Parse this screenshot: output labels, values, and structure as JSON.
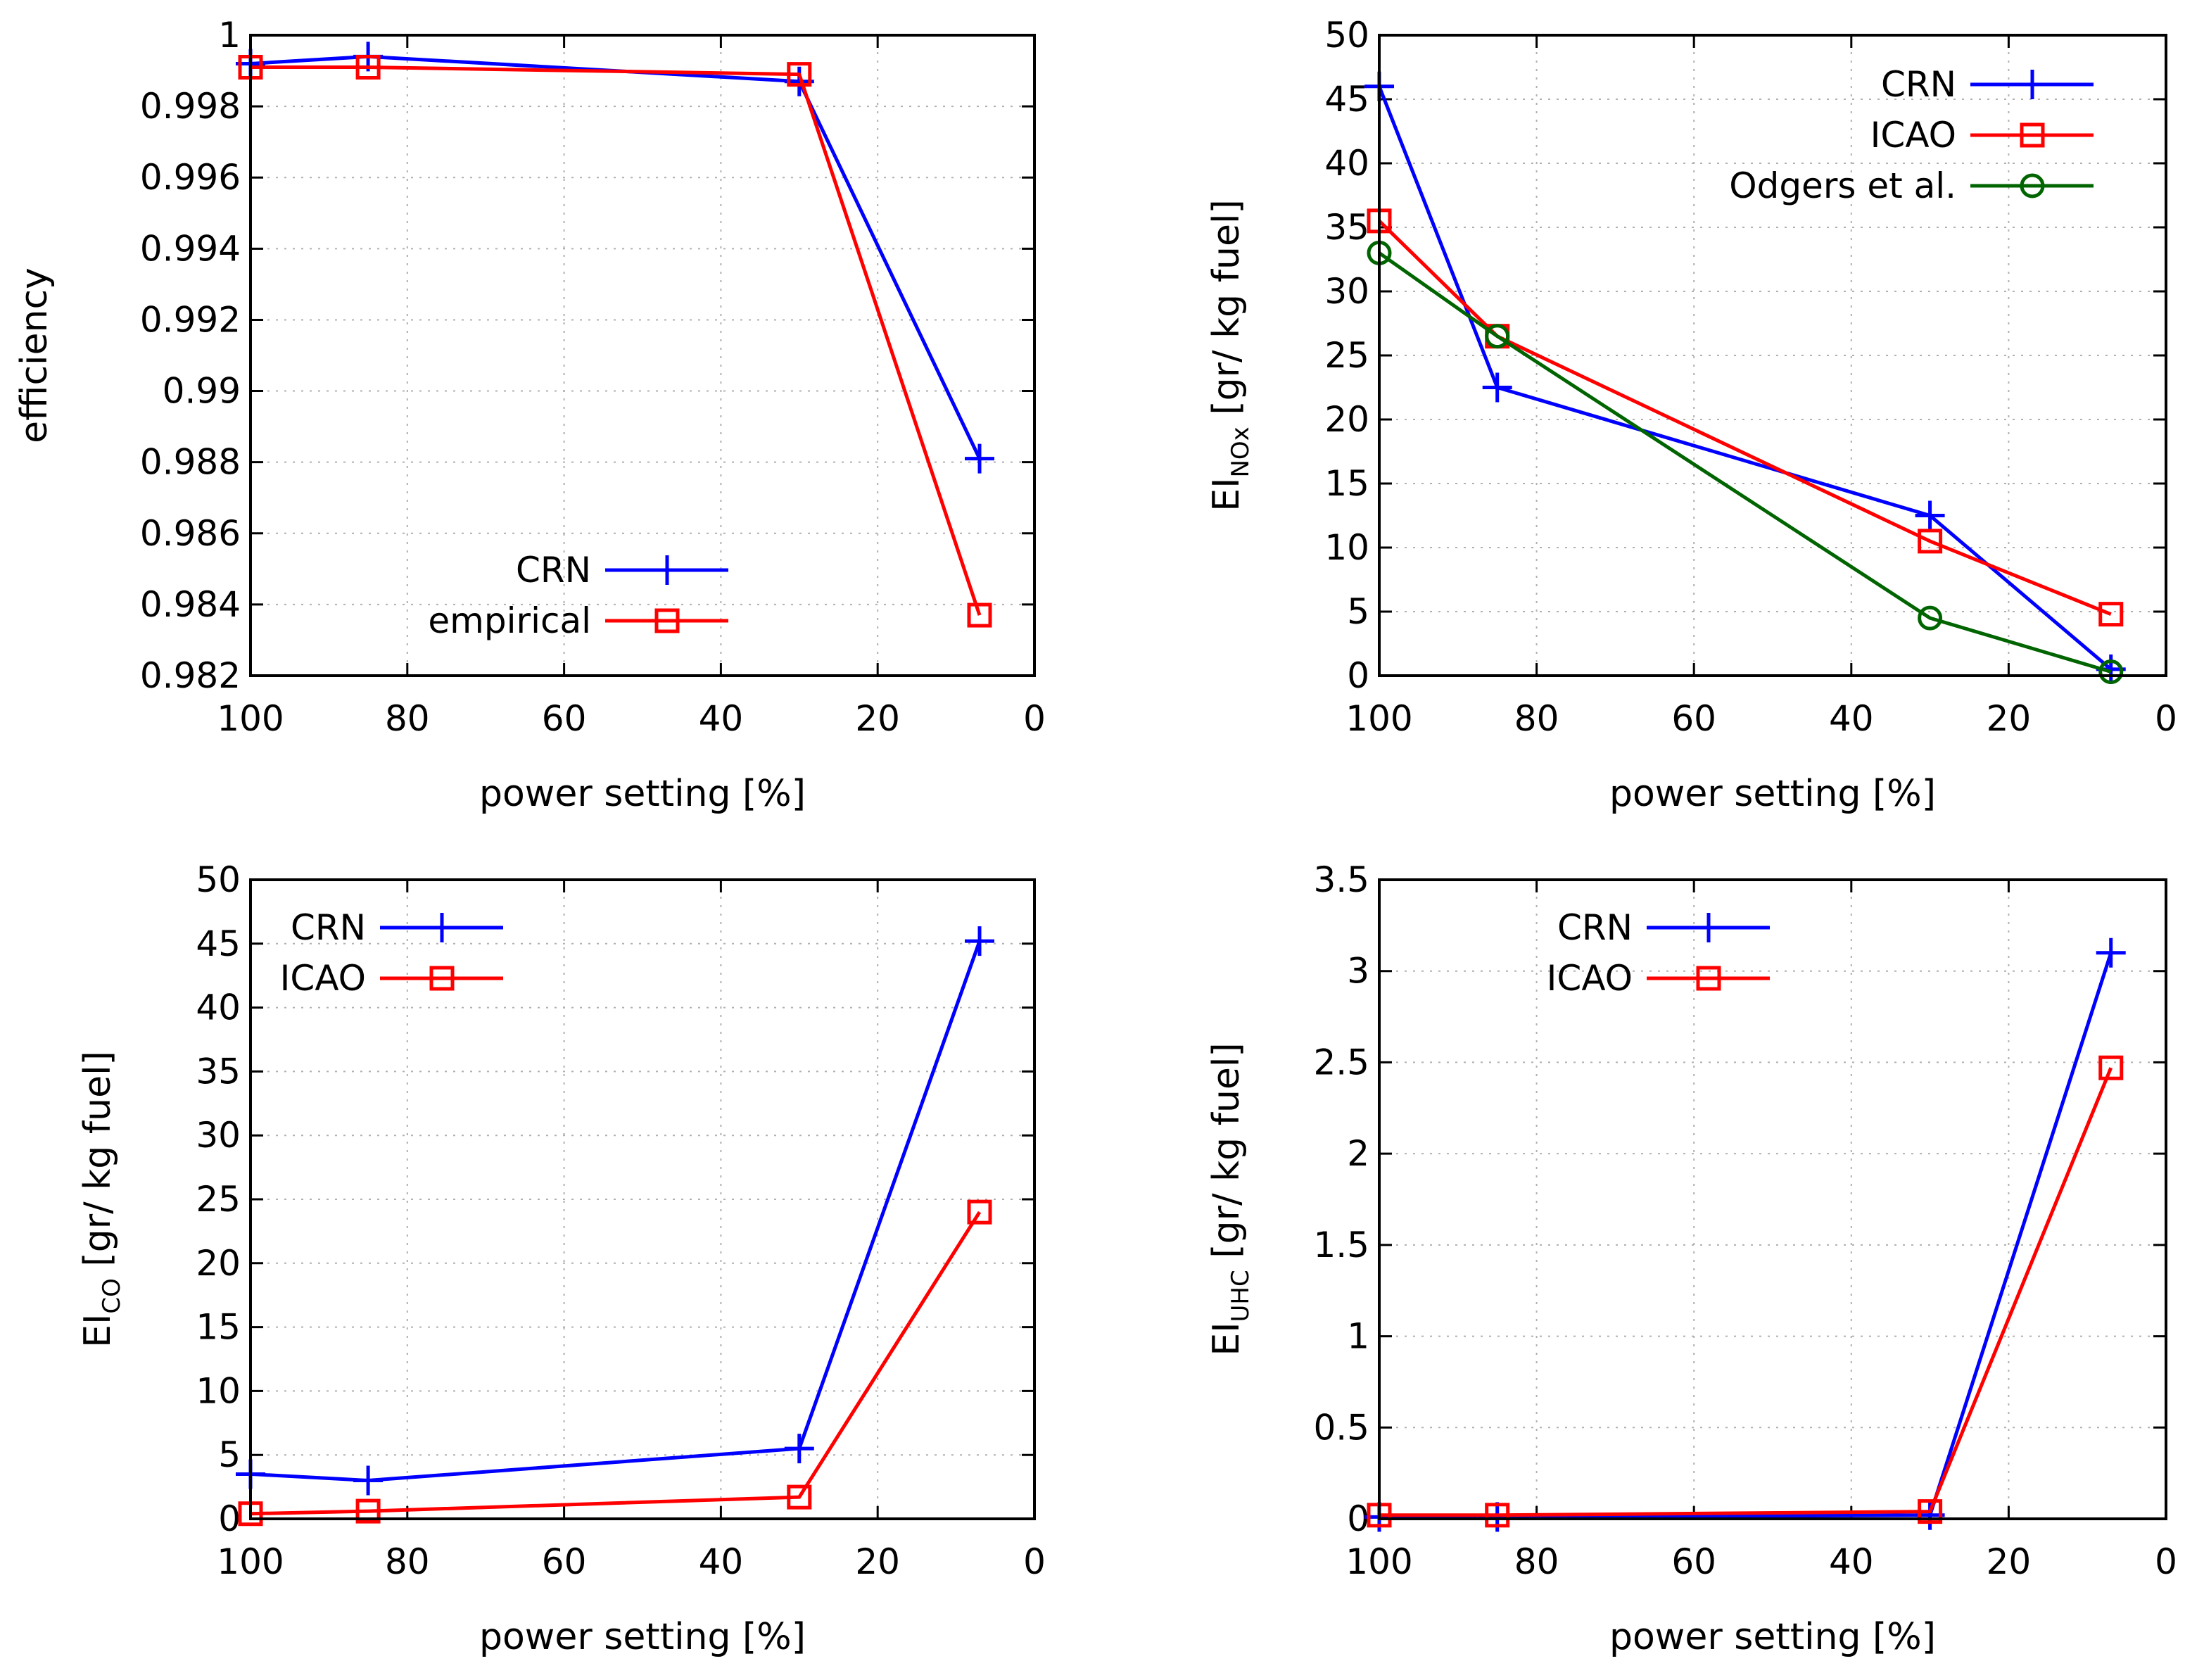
{
  "colors": {
    "CRN": "#0000ff",
    "ICAO": "#ff0000",
    "empirical": "#ff0000",
    "Odgers et al.": "#006400"
  },
  "chart_data": [
    {
      "type": "line",
      "xlabel": "power setting [%]",
      "ylabel": "efficiency",
      "ylabel_sub": "",
      "ylabel_rest": "",
      "xlim": [
        100,
        0
      ],
      "ylim": [
        0.982,
        1
      ],
      "xticks": [
        100,
        80,
        60,
        40,
        20,
        0
      ],
      "xtick_labels": [
        "100",
        "80",
        "60",
        "40",
        "20",
        "0"
      ],
      "yticks": [
        0.982,
        0.984,
        0.986,
        0.988,
        0.99,
        0.992,
        0.994,
        0.996,
        0.998,
        1
      ],
      "ytick_labels": [
        "0.982",
        "0.984",
        "0.986",
        "0.988",
        "0.99",
        "0.992",
        "0.994",
        "0.996",
        "0.998",
        "1"
      ],
      "legend_position": "bottom-left",
      "series": [
        {
          "name": "CRN",
          "marker": "plus",
          "x": [
            100,
            85,
            30,
            7
          ],
          "values": [
            0.9992,
            0.9994,
            0.9987,
            0.9881
          ]
        },
        {
          "name": "empirical",
          "marker": "square",
          "x": [
            100,
            85,
            30,
            7
          ],
          "values": [
            0.9991,
            0.9991,
            0.9989,
            0.9837
          ]
        }
      ]
    },
    {
      "type": "line",
      "xlabel": "power setting [%]",
      "ylabel": "EI",
      "ylabel_sub": "NOx",
      "ylabel_rest": " [gr/ kg fuel]",
      "xlim": [
        100,
        0
      ],
      "ylim": [
        0,
        50
      ],
      "xticks": [
        100,
        80,
        60,
        40,
        20,
        0
      ],
      "xtick_labels": [
        "100",
        "80",
        "60",
        "40",
        "20",
        "0"
      ],
      "yticks": [
        0,
        5,
        10,
        15,
        20,
        25,
        30,
        35,
        40,
        45,
        50
      ],
      "ytick_labels": [
        "0",
        "5",
        "10",
        "15",
        "20",
        "25",
        "30",
        "35",
        "40",
        "45",
        "50"
      ],
      "legend_position": "top-right",
      "series": [
        {
          "name": "CRN",
          "marker": "plus",
          "x": [
            100,
            85,
            30,
            7
          ],
          "values": [
            46,
            22.5,
            12.5,
            0.5
          ]
        },
        {
          "name": "ICAO",
          "marker": "square",
          "x": [
            100,
            85,
            30,
            7
          ],
          "values": [
            35.5,
            26.5,
            10.5,
            4.8
          ]
        },
        {
          "name": "Odgers et al.",
          "marker": "circle",
          "x": [
            100,
            85,
            30,
            7
          ],
          "values": [
            33,
            26.5,
            4.5,
            0.3
          ]
        }
      ]
    },
    {
      "type": "line",
      "xlabel": "power setting [%]",
      "ylabel": "EI",
      "ylabel_sub": "CO",
      "ylabel_rest": " [gr/ kg fuel]",
      "xlim": [
        100,
        0
      ],
      "ylim": [
        0,
        50
      ],
      "xticks": [
        100,
        80,
        60,
        40,
        20,
        0
      ],
      "xtick_labels": [
        "100",
        "80",
        "60",
        "40",
        "20",
        "0"
      ],
      "yticks": [
        0,
        5,
        10,
        15,
        20,
        25,
        30,
        35,
        40,
        45,
        50
      ],
      "ytick_labels": [
        "0",
        "5",
        "10",
        "15",
        "20",
        "25",
        "30",
        "35",
        "40",
        "45",
        "50"
      ],
      "legend_position": "top-left",
      "series": [
        {
          "name": "CRN",
          "marker": "plus",
          "x": [
            100,
            85,
            30,
            7
          ],
          "values": [
            3.5,
            3,
            5.5,
            45.2
          ]
        },
        {
          "name": "ICAO",
          "marker": "square",
          "x": [
            100,
            85,
            30,
            7
          ],
          "values": [
            0.4,
            0.6,
            1.7,
            24
          ]
        }
      ]
    },
    {
      "type": "line",
      "xlabel": "power setting [%]",
      "ylabel": "EI",
      "ylabel_sub": "UHC",
      "ylabel_rest": " [gr/ kg fuel]",
      "xlim": [
        100,
        0
      ],
      "ylim": [
        0,
        3.5
      ],
      "xticks": [
        100,
        80,
        60,
        40,
        20,
        0
      ],
      "xtick_labels": [
        "100",
        "80",
        "60",
        "40",
        "20",
        "0"
      ],
      "yticks": [
        0,
        0.5,
        1,
        1.5,
        2,
        2.5,
        3,
        3.5
      ],
      "ytick_labels": [
        "0",
        "0.5",
        "1",
        "1.5",
        "2",
        "2.5",
        "3",
        "3.5"
      ],
      "legend_position": "top-left",
      "series": [
        {
          "name": "CRN",
          "marker": "plus",
          "x": [
            100,
            85,
            30,
            7
          ],
          "values": [
            0.01,
            0.01,
            0.02,
            3.1
          ]
        },
        {
          "name": "ICAO",
          "marker": "square",
          "x": [
            100,
            85,
            30,
            7
          ],
          "values": [
            0.02,
            0.02,
            0.04,
            2.47
          ]
        }
      ]
    }
  ]
}
